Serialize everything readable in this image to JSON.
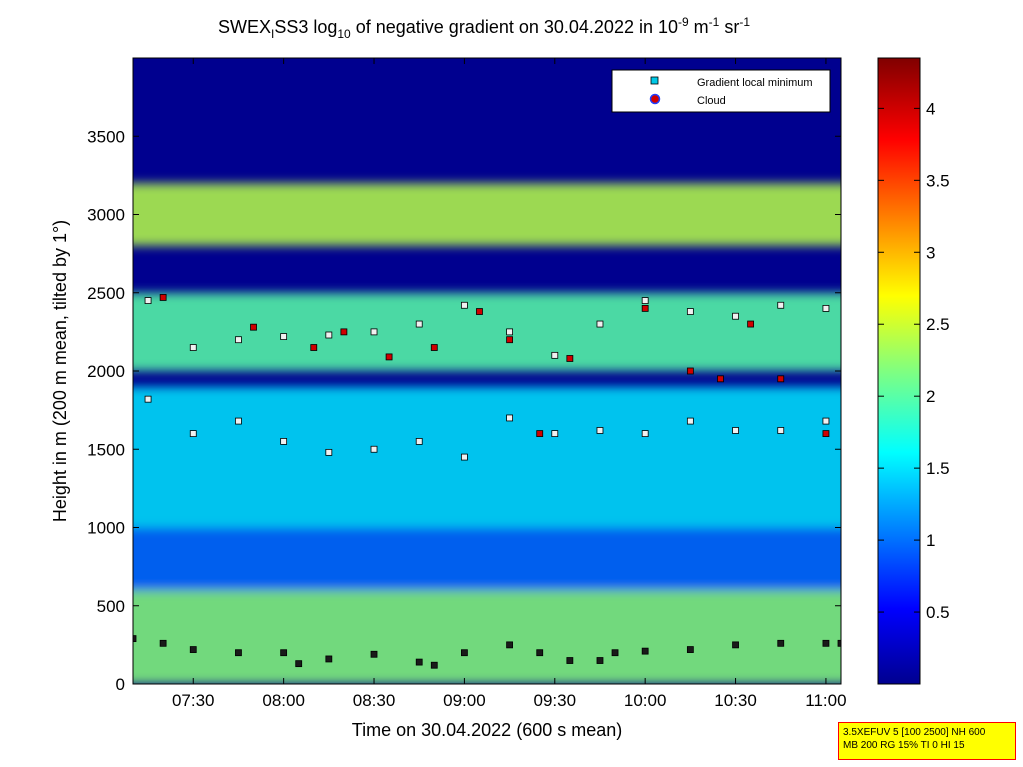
{
  "chart_data": {
    "type": "heatmap",
    "title": {
      "prefix": "SWEX",
      "prefix_sub": "I",
      "main": "SS3 log",
      "main_sub": "10",
      "mid": " of negative gradient on 30.04.2022 in 10",
      "exp1": "-9",
      "unit1": " m",
      "exp2": "-1",
      "unit2": " sr",
      "exp3": "-1"
    },
    "xlabel": "Time on 30.04.2022 (600 s mean)",
    "ylabel": "Height in m (200 m mean, tilted by 1°)",
    "x_range": [
      "07:10",
      "11:05"
    ],
    "x_ticks": [
      "07:30",
      "08:00",
      "08:30",
      "09:00",
      "09:30",
      "10:00",
      "10:30",
      "11:00"
    ],
    "ylim": [
      0,
      4000
    ],
    "y_ticks": [
      0,
      500,
      1000,
      1500,
      2000,
      2500,
      3000,
      3500
    ],
    "colorbar": {
      "range": [
        0,
        4.35
      ],
      "ticks": [
        "0.5",
        "1",
        "1.5",
        "2",
        "2.5",
        "3",
        "3.5",
        "4"
      ],
      "colormap": "jet"
    },
    "legend": {
      "position": "top-right",
      "entries": [
        {
          "label": "Gradient local minimum",
          "marker": "square",
          "color": "#00c8e6"
        },
        {
          "label": "Cloud",
          "marker": "circle",
          "color": "#d00000"
        }
      ]
    },
    "layers": [
      {
        "description": "surface layer",
        "height_range": [
          0,
          600
        ],
        "level": 2.2
      },
      {
        "description": "gap",
        "height_range": [
          600,
          1000
        ],
        "level": 1.0
      },
      {
        "description": "aerosol layer",
        "height_range": [
          1000,
          1900
        ],
        "level": 1.5
      },
      {
        "description": "cloud band",
        "height_range": [
          2000,
          2500
        ],
        "level": 2.0
      },
      {
        "description": "upper layer",
        "height_range": [
          2800,
          3200
        ],
        "level": 2.4
      }
    ],
    "gradient_minima_bottom": {
      "x": [
        "07:10",
        "07:20",
        "07:30",
        "07:45",
        "08:00",
        "08:05",
        "08:15",
        "08:30",
        "08:45",
        "08:50",
        "09:00",
        "09:15",
        "09:25",
        "09:35",
        "09:45",
        "09:50",
        "10:00",
        "10:15",
        "10:30",
        "10:45",
        "11:00",
        "11:05"
      ],
      "y": [
        290,
        260,
        220,
        200,
        200,
        130,
        160,
        190,
        140,
        120,
        200,
        250,
        200,
        150,
        150,
        200,
        210,
        220,
        250,
        260,
        260,
        260
      ]
    },
    "gradient_minima_upper": {
      "x": [
        "07:15",
        "07:30",
        "07:45",
        "08:00",
        "08:15",
        "08:30",
        "08:45",
        "09:00",
        "09:15",
        "09:30",
        "09:45",
        "10:00",
        "10:15",
        "10:30",
        "10:45",
        "11:00"
      ],
      "y": [
        2450,
        2150,
        2200,
        2220,
        2230,
        2250,
        2300,
        2420,
        2250,
        2100,
        2300,
        2450,
        2380,
        2350,
        2420,
        2400
      ]
    },
    "gradient_minima_mid": {
      "x": [
        "07:15",
        "07:30",
        "07:45",
        "08:00",
        "08:15",
        "08:30",
        "08:45",
        "09:00",
        "09:15",
        "09:30",
        "09:45",
        "10:00",
        "10:15",
        "10:30",
        "10:45",
        "11:00"
      ],
      "y": [
        1820,
        1600,
        1680,
        1550,
        1480,
        1500,
        1550,
        1450,
        1700,
        1600,
        1620,
        1600,
        1680,
        1620,
        1620,
        1680
      ]
    },
    "cloud_points": {
      "x": [
        "07:20",
        "07:50",
        "08:10",
        "08:20",
        "08:35",
        "08:50",
        "09:05",
        "09:15",
        "09:25",
        "09:35",
        "10:00",
        "10:15",
        "10:25",
        "10:35",
        "10:45",
        "11:00"
      ],
      "y": [
        2470,
        2280,
        2150,
        2250,
        2090,
        2150,
        2380,
        2200,
        1600,
        2080,
        2400,
        2000,
        1950,
        2300,
        1950,
        1600
      ]
    }
  },
  "settings_box": {
    "line1": "3.5XEFUV 5 [100 2500] NH 600",
    "line2": "MB 200 RG 15% TI 0 HI 15"
  }
}
